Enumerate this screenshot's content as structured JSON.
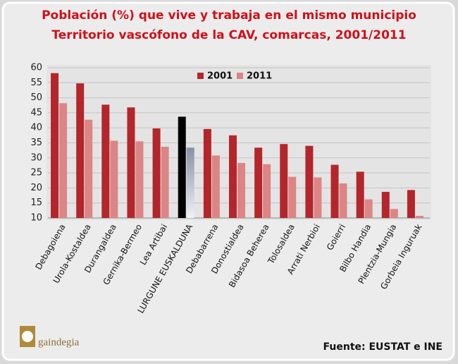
{
  "chart_data": {
    "type": "bar",
    "title": "Población (%) que vive y trabaja en el mismo municipio",
    "subtitle": "Territorio vascófono de la CAV, comarcas, 2001/2011",
    "categories": [
      "Debagoiena",
      "Urola-Kostaldea",
      "Durangaldea",
      "Gernika-Bermeo",
      "Lea Artibai",
      "LURGUNE EUSKALDUNA",
      "Debabarrena",
      "Donostialdea",
      "Bidasoa Beherea",
      "Tolosaldea",
      "Arrati Nerbioi",
      "Goierri",
      "Bilbo Handia",
      "Plentzia-Mungia",
      "Gorbeia Inguruak"
    ],
    "series": [
      {
        "name": "2001",
        "color": "#b3262b",
        "values": [
          58.2,
          54.8,
          47.7,
          46.8,
          39.8,
          43.7,
          39.6,
          37.5,
          33.4,
          34.6,
          34.0,
          27.7,
          25.4,
          18.7,
          19.3
        ]
      },
      {
        "name": "2011",
        "color": "#dc8585",
        "values": [
          48.2,
          42.7,
          35.7,
          35.5,
          33.7,
          33.4,
          30.8,
          28.3,
          27.9,
          23.7,
          23.5,
          21.5,
          16.2,
          13.0,
          10.7
        ]
      }
    ],
    "highlight": {
      "index": 5,
      "colors": [
        "#000000",
        "#a4aabb"
      ]
    },
    "ylim": [
      10,
      60
    ],
    "yticks": [
      10,
      15,
      20,
      25,
      30,
      35,
      40,
      45,
      50,
      55,
      60
    ],
    "grid": true,
    "legend": "top",
    "source": "Fuente: EUSTAT e INE",
    "logo_text": "gaindegia"
  }
}
